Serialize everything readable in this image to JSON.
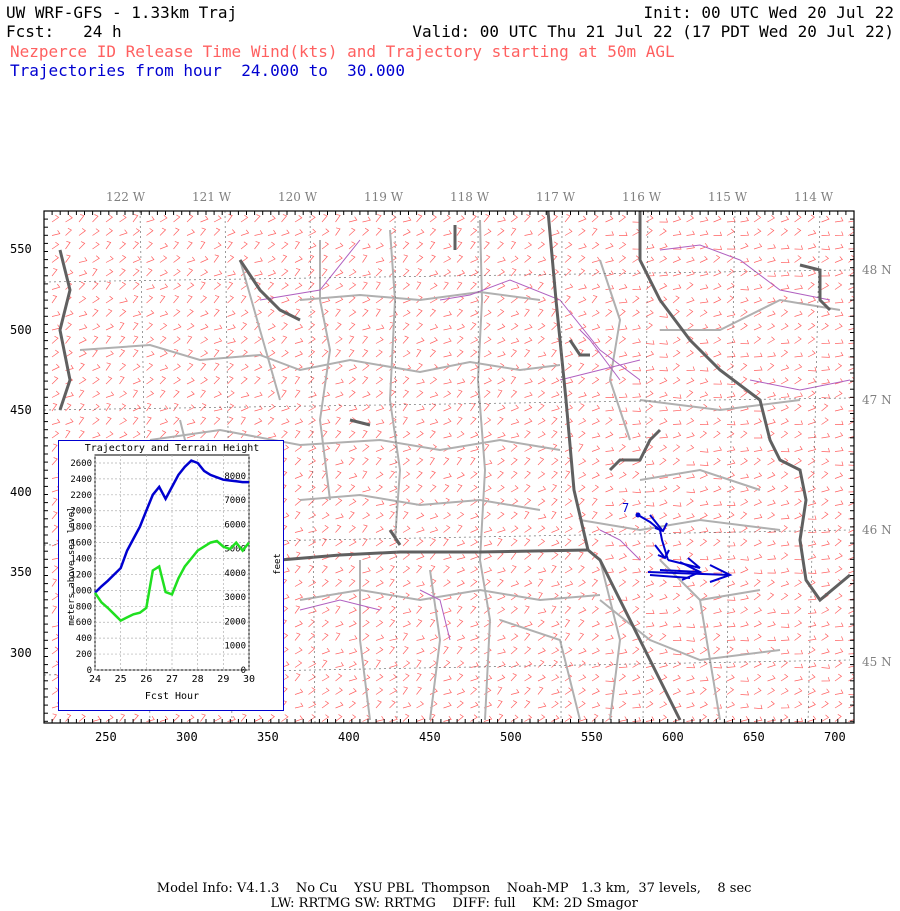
{
  "header": {
    "title": "UW WRF-GFS - 1.33km Traj",
    "init": "Init: 00 UTC Wed 20 Jul 22",
    "fcst": "Fcst:   24 h",
    "valid": "Valid: 00 UTC Thu 21 Jul 22 (17 PDT Wed 20 Jul 22)",
    "subtitle": "Nezperce ID Release Time Wind(kts) and Trajectory starting at 50m AGL",
    "traj_range": "Trajectories from hour  24.000 to  30.000"
  },
  "map": {
    "lon_labels": [
      "122 W",
      "121 W",
      "120 W",
      "119 W",
      "118 W",
      "117 W",
      "116 W",
      "115 W",
      "114 W"
    ],
    "lat_labels": [
      "48 N",
      "47 N",
      "46 N",
      "45 N"
    ],
    "x_ticks": [
      "250",
      "300",
      "350",
      "400",
      "450",
      "500",
      "550",
      "600",
      "650",
      "700"
    ],
    "y_ticks": [
      "550",
      "500",
      "450",
      "400",
      "350",
      "300"
    ],
    "traj_label": "7",
    "colors": {
      "wind": "#ff6060",
      "traj": "#0000d0",
      "state": "#606060",
      "county": "#b0b0b0",
      "river": "#b060c0"
    }
  },
  "inset": {
    "title": "Trajectory and Terrain Height",
    "ylabel_left": "meters above sea level",
    "ylabel_right": "feet",
    "xlabel": "Fcst Hour",
    "left_ticks": [
      "2600",
      "2400",
      "2200",
      "2000",
      "1800",
      "1600",
      "1400",
      "1200",
      "1000",
      "800",
      "600",
      "400",
      "200",
      "0"
    ],
    "right_ticks": [
      "8000",
      "7000",
      "6000",
      "5000",
      "4000",
      "3000",
      "2000",
      "1000",
      "0"
    ],
    "x_ticks": [
      "24",
      "25",
      "26",
      "27",
      "28",
      "29",
      "30"
    ]
  },
  "chart_data": {
    "type": "line",
    "title": "Trajectory and Terrain Height",
    "xlabel": "Fcst Hour",
    "ylabel": "meters above sea level",
    "xlim": [
      24,
      30
    ],
    "ylim": [
      0,
      2700
    ],
    "series": [
      {
        "color": "#0000d0",
        "x": [
          24,
          24.25,
          24.5,
          24.75,
          25,
          25.25,
          25.5,
          25.75,
          26,
          26.25,
          26.5,
          26.75,
          27,
          27.25,
          27.5,
          27.75,
          28,
          28.25,
          28.5,
          28.75,
          29,
          29.25,
          29.5,
          29.75,
          30
        ],
        "y": [
          970,
          1050,
          1120,
          1200,
          1280,
          1500,
          1650,
          1800,
          2000,
          2200,
          2300,
          2150,
          2300,
          2450,
          2550,
          2630,
          2600,
          2500,
          2450,
          2420,
          2390,
          2380,
          2370,
          2360,
          2360
        ]
      },
      {
        "color": "#20e020",
        "x": [
          24,
          24.25,
          24.5,
          24.75,
          25,
          25.25,
          25.5,
          25.75,
          26,
          26.25,
          26.5,
          26.75,
          27,
          27.25,
          27.5,
          27.75,
          28,
          28.25,
          28.5,
          28.75,
          29,
          29.25,
          29.5,
          29.75,
          30
        ],
        "y": [
          970,
          850,
          780,
          700,
          620,
          660,
          700,
          720,
          780,
          1250,
          1300,
          980,
          950,
          1150,
          1300,
          1400,
          1500,
          1550,
          1600,
          1620,
          1550,
          1520,
          1600,
          1500,
          1600
        ]
      }
    ]
  }
}
